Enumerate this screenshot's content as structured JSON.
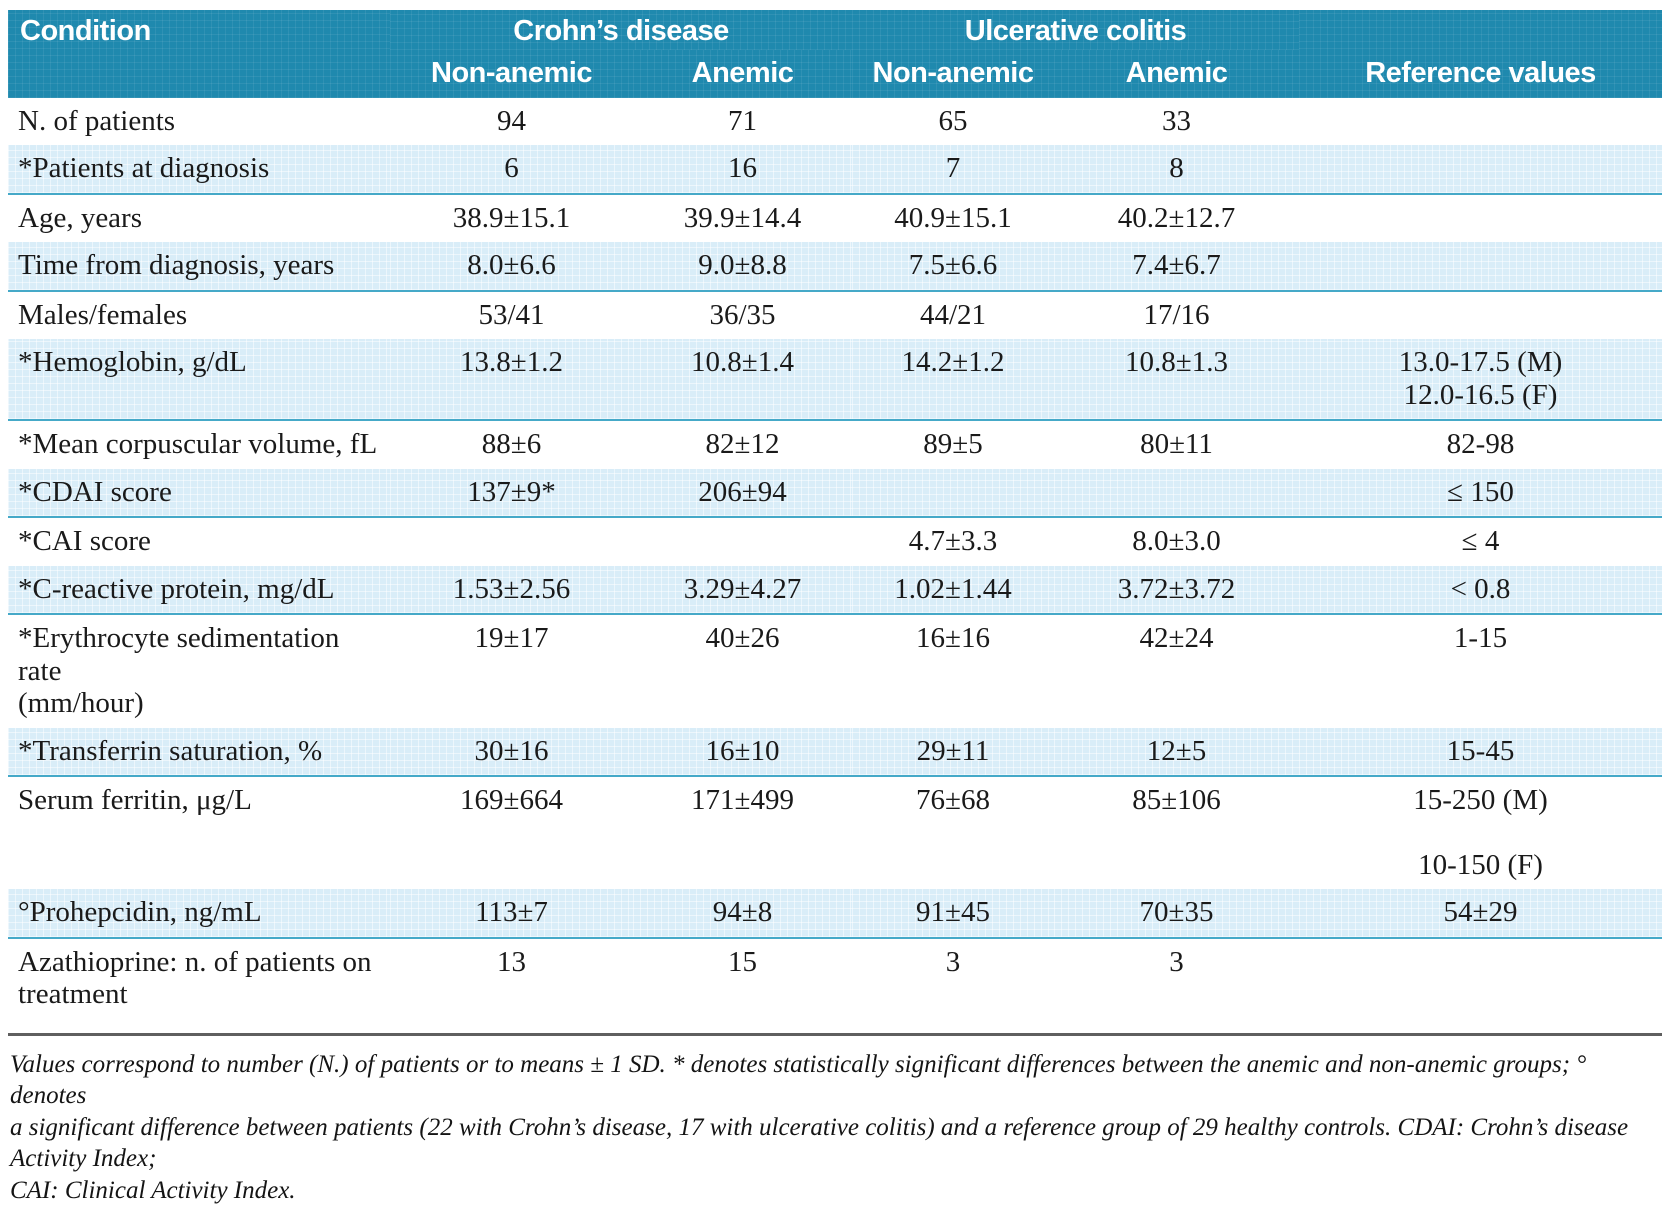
{
  "colors": {
    "header_bg": "#1f89ae",
    "header_text": "#ffffff",
    "shaded_row_bg": "#d9edf8",
    "shaded_row_border": "#45a9c8",
    "footnote_rule": "#5f5f5f",
    "body_text": "#1a1a1a"
  },
  "table": {
    "header": {
      "condition": "Condition",
      "group_crohns": "Crohn’s disease",
      "group_uc": "Ulcerative colitis",
      "sub_cd_non_anemic": "Non-anemic",
      "sub_cd_anemic": "Anemic",
      "sub_uc_non_anemic": "Non-anemic",
      "sub_uc_anemic": "Anemic",
      "reference": "Reference values"
    },
    "rows": [
      {
        "condition": "N. of patients",
        "cd_non_anemic": "94",
        "cd_anemic": "71",
        "uc_non_anemic": "65",
        "uc_anemic": "33",
        "reference": ""
      },
      {
        "condition": "*Patients at diagnosis",
        "cd_non_anemic": "6",
        "cd_anemic": "16",
        "uc_non_anemic": "7",
        "uc_anemic": "8",
        "reference": ""
      },
      {
        "condition": "Age, years",
        "cd_non_anemic": "38.9±15.1",
        "cd_anemic": "39.9±14.4",
        "uc_non_anemic": "40.9±15.1",
        "uc_anemic": "40.2±12.7",
        "reference": ""
      },
      {
        "condition": "Time from diagnosis, years",
        "cd_non_anemic": "8.0±6.6",
        "cd_anemic": "9.0±8.8",
        "uc_non_anemic": "7.5±6.6",
        "uc_anemic": "7.4±6.7",
        "reference": ""
      },
      {
        "condition": "Males/females",
        "cd_non_anemic": "53/41",
        "cd_anemic": "36/35",
        "uc_non_anemic": "44/21",
        "uc_anemic": "17/16",
        "reference": ""
      },
      {
        "condition": "*Hemoglobin, g/dL",
        "cd_non_anemic": "13.8±1.2",
        "cd_anemic": "10.8±1.4",
        "uc_non_anemic": "14.2±1.2",
        "uc_anemic": "10.8±1.3",
        "reference": "13.0-17.5 (M)\n12.0-16.5 (F)"
      },
      {
        "condition": "*Mean corpuscular volume, fL",
        "cd_non_anemic": "88±6",
        "cd_anemic": "82±12",
        "uc_non_anemic": "89±5",
        "uc_anemic": "80±11",
        "reference": "82-98"
      },
      {
        "condition": "*CDAI score",
        "cd_non_anemic": "137±9*",
        "cd_anemic": "206±94",
        "uc_non_anemic": "",
        "uc_anemic": "",
        "reference": "≤ 150"
      },
      {
        "condition": "*CAI score",
        "cd_non_anemic": "",
        "cd_anemic": "",
        "uc_non_anemic": "4.7±3.3",
        "uc_anemic": "8.0±3.0",
        "reference": "≤ 4"
      },
      {
        "condition": "*C-reactive protein, mg/dL",
        "cd_non_anemic": "1.53±2.56",
        "cd_anemic": "3.29±4.27",
        "uc_non_anemic": "1.02±1.44",
        "uc_anemic": "3.72±3.72",
        "reference": "< 0.8"
      },
      {
        "condition": "*Erythrocyte sedimentation rate\n(mm/hour)",
        "cd_non_anemic": "19±17",
        "cd_anemic": "40±26",
        "uc_non_anemic": "16±16",
        "uc_anemic": "42±24",
        "reference": "1-15"
      },
      {
        "condition": "*Transferrin saturation, %",
        "cd_non_anemic": "30±16",
        "cd_anemic": "16±10",
        "uc_non_anemic": "29±11",
        "uc_anemic": "12±5",
        "reference": "15-45"
      },
      {
        "condition": "Serum ferritin, μg/L",
        "cd_non_anemic": "169±664",
        "cd_anemic": "171±499",
        "uc_non_anemic": "76±68",
        "uc_anemic": "85±106",
        "reference": "15-250 (M)\n\n10-150 (F)"
      },
      {
        "condition": "°Prohepcidin, ng/mL",
        "cd_non_anemic": "113±7",
        "cd_anemic": "94±8",
        "uc_non_anemic": "91±45",
        "uc_anemic": "70±35",
        "reference": "54±29"
      },
      {
        "condition": "Azathioprine: n. of patients on treatment",
        "cd_non_anemic": "13",
        "cd_anemic": "15",
        "uc_non_anemic": "3",
        "uc_anemic": "3",
        "reference": ""
      }
    ]
  },
  "footnote": {
    "text": "Values correspond to number (N.) of patients or to means ± 1 SD. * denotes statistically significant differences between the anemic and non-anemic groups; ° denotes\na significant difference between patients (22 with Crohn’s disease, 17 with ulcerative colitis) and a reference group of 29 healthy controls. CDAI: Crohn’s disease Activity Index;\nCAI: Clinical Activity Index."
  }
}
